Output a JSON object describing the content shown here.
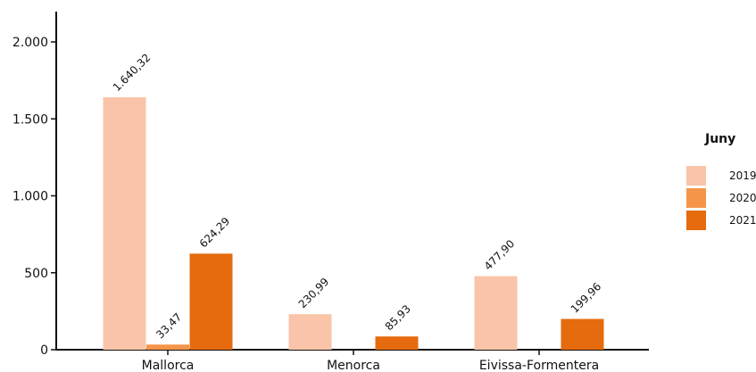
{
  "chart_data": {
    "type": "bar",
    "title": "",
    "xlabel": "",
    "ylabel": "",
    "categories": [
      "Mallorca",
      "Menorca",
      "Eivissa-Formentera"
    ],
    "series": [
      {
        "name": "2019",
        "values": [
          1640.32,
          230.99,
          477.9
        ],
        "labels": [
          "1.640,32",
          "230,99",
          "477,90"
        ],
        "color": "#f9c4a9"
      },
      {
        "name": "2020",
        "values": [
          33.47,
          0,
          0
        ],
        "labels": [
          "33,47",
          "",
          ""
        ],
        "color": "#f5954a"
      },
      {
        "name": "2021",
        "values": [
          624.29,
          85.93,
          199.96
        ],
        "labels": [
          "624,29",
          "85,93",
          "199,96"
        ],
        "color": "#e56b0e"
      }
    ],
    "ylim": [
      0,
      2100
    ],
    "yticks": [
      0,
      500,
      1000,
      1500,
      2000
    ],
    "ytick_labels": [
      "0",
      "500",
      "1.000",
      "1.500",
      "2.000"
    ],
    "grid": false,
    "legend": {
      "title": "Juny",
      "position": "right"
    }
  }
}
